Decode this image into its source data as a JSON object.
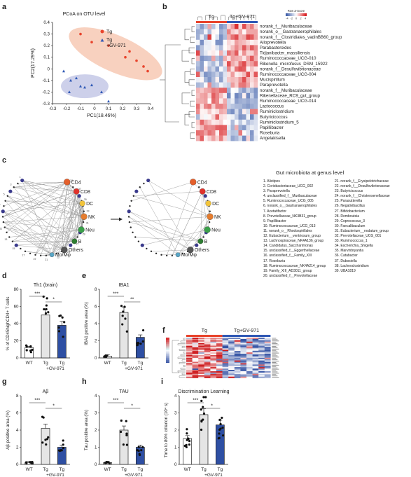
{
  "panels": {
    "a": {
      "letter": "a",
      "title": "PCoA on OTU level",
      "xlabel": "PC1(18.46%)",
      "ylabel": "PC2(17.29%)",
      "xticks": [
        "-0.3",
        "-0.2",
        "-0.1",
        "0",
        "0.1",
        "0.2",
        "0.3",
        "0.4"
      ],
      "yticks": [
        "0.4",
        "0.3",
        "0.2",
        "0.1",
        "0",
        "-0.1",
        "-0.2",
        "-0.3"
      ],
      "legend": [
        "Tg",
        "Tg\n+GV-971"
      ],
      "legend_l1": "Tg",
      "legend_l2a": "Tg",
      "legend_l2b": "+GV-971"
    },
    "b": {
      "letter": "b",
      "group1": "Tg",
      "group2": "Tg+GV-971",
      "scale_title": "Row Z-Score",
      "scale_ticks": [
        "-4",
        "-2",
        "0",
        "2",
        "4"
      ],
      "rows": [
        "norank_f__Muribaculaceae",
        "norank_o__Gastranaerophilales",
        "norank_f__Clostridiales_vadinBB60_group",
        "Alloprevotella",
        "Parabacteroides",
        "Tidjanibacter_massiliensis",
        "Ruminococcaceae_UCG-010",
        "Rikenella_microfusus_DSM_15922",
        "norank_f__Desulfovibrionaceae",
        "Ruminococcaceae_UCG-004",
        "Mucispirillum",
        "Paraprevotella",
        "norank_f__Muribaculaceae",
        "Rikenellaceae_RC9_gut_group",
        "Ruminococcaceae_UCG-014",
        "Lactococcus",
        "Ruminiclostridium",
        "Butyricicoccus",
        "Ruminiclostridium_5",
        "Papillibacter",
        "Roseburia",
        "Angelakisella"
      ]
    },
    "c": {
      "letter": "c",
      "nodes": [
        "CD4",
        "CD8",
        "DC",
        "NK",
        "Neu",
        "B",
        "Others",
        "Mo/Mφ"
      ],
      "title": "Gut microbiota at genus level",
      "genera_col1": [
        "1. Alistipes",
        "2. Coriobacteriaceae_UCG_002",
        "3. Paraprevotella",
        "4. unclassified_f__Muribaculaceae",
        "5. Ruminococcaceae_UCG_005",
        "6. norank_o__Gastranaerophilales",
        "7. Acetatifactor",
        "8. Prevotellaceae_NK3B31_group",
        "9. Papillibacter",
        "10. Ruminococcaceae_UCG_013",
        "11. norank_o__Rhodospirillales",
        "12. Eubacterium__ventriosum_group",
        "13. Lachnospiraceae_NK4A136_group",
        "14. Candidatus_Saccharimonas",
        "15. unclassified_f__Eggerthellaceae",
        "16. unclassified_f__Family_XIII",
        "17. Roseburia",
        "18. Ruminococcaceae_NK4A214_group",
        "19. Family_XIII_AD3011_group",
        "20. unclassified_f__Prevotellaceae"
      ],
      "genera_col2": [
        "21. norank_f__Erysipelotrichaceae",
        "22. norank_f__Desulfovibrionaceae",
        "23. Butyricicoccus",
        "24. norank_f__Christensenellaceae",
        "25. Parasutterella",
        "26. Negativibacillus",
        "27. Bifidobacterium",
        "28. Romboutsia",
        "29. Coprococcus_3",
        "30. Faecalibaculum",
        "31. Eubacterium__nodatum_group",
        "32. Prevotellaceae_UCG_001",
        "33. Ruminococcus_1",
        "34. Escherichia_Shigella",
        "35. Marvinbryantia",
        "36. Catabacter",
        "37. Dubosiella",
        "38. Lachnoclostridium",
        "39. UBA1819"
      ]
    },
    "d": {
      "letter": "d",
      "title": "Th1 (brain)",
      "ylabel": "% of CD45ʰᴵᵍCD4⁺ T cells",
      "ylabel_plain": "% of CD45highCD4+ T cells",
      "yticks": [
        "0",
        "20",
        "40",
        "60",
        "80"
      ],
      "sig": [
        "***",
        "*"
      ]
    },
    "e": {
      "letter": "e",
      "title": "IBA1",
      "ylabel": "IBA1 positive area (%)",
      "yticks": [
        "0",
        "2",
        "4",
        "6",
        "8"
      ],
      "sig": [
        "***",
        "**"
      ]
    },
    "f": {
      "letter": "f",
      "group1": "Tg",
      "group2": "Tg+GV-971"
    },
    "g": {
      "letter": "g",
      "title": "Aβ",
      "ylabel": "Aβ positive area (%)",
      "yticks": [
        "0",
        "2",
        "4",
        "6",
        "8"
      ],
      "sig": [
        "***",
        "*"
      ]
    },
    "h": {
      "letter": "h",
      "title": "TAU",
      "ylabel": "Tau positive area (%)",
      "yticks": [
        "0",
        "1",
        "2",
        "3",
        "4"
      ],
      "sig": [
        "***",
        "*"
      ]
    },
    "i": {
      "letter": "i",
      "title": "Discrimination Learning",
      "ylabel": "Time to 80% criterion (10⁴ s)",
      "yticks": [
        "0",
        "1",
        "2",
        "3",
        "4"
      ],
      "sig": [
        "***",
        "*"
      ]
    }
  },
  "groups": {
    "wt": "WT",
    "tg": "Tg",
    "tg_gv_a": "Tg",
    "tg_gv_b": "+GV-971"
  },
  "colors": {
    "tg": "#e8442c",
    "gv": "#2f58b5",
    "wt_bar": "#ffffff",
    "tg_bar": "#e5e5e5",
    "gv_bar": "#2e4fa3",
    "ellipse_tg": "#f7c9b4",
    "ellipse_gv": "#c8cbe8",
    "hm_high": "#d7191c",
    "hm_low": "#3b5ba7"
  },
  "chart_data": [
    {
      "panel": "d",
      "type": "bar",
      "title": "Th1 (brain)",
      "categories": [
        "WT",
        "Tg",
        "Tg+GV-971"
      ],
      "values": [
        12,
        50,
        38
      ],
      "ylim": [
        0,
        80
      ],
      "ylabel": "% of CD45highCD4+ T cells"
    },
    {
      "panel": "e",
      "type": "bar",
      "title": "IBA1",
      "categories": [
        "WT",
        "Tg",
        "Tg+GV-971"
      ],
      "values": [
        0.2,
        5.3,
        2.4
      ],
      "ylim": [
        0,
        8
      ],
      "ylabel": "IBA1 positive area (%)"
    },
    {
      "panel": "g",
      "type": "bar",
      "title": "Aβ",
      "categories": [
        "WT",
        "Tg",
        "Tg+GV-971"
      ],
      "values": [
        0.2,
        4.2,
        2.0
      ],
      "ylim": [
        0,
        8
      ],
      "ylabel": "Aβ positive area (%)"
    },
    {
      "panel": "h",
      "type": "bar",
      "title": "TAU",
      "categories": [
        "WT",
        "Tg",
        "Tg+GV-971"
      ],
      "values": [
        0.1,
        2.0,
        1.0
      ],
      "ylim": [
        0,
        4
      ],
      "ylabel": "Tau positive area (%)"
    },
    {
      "panel": "i",
      "type": "bar",
      "title": "Discrimination Learning",
      "categories": [
        "WT",
        "Tg",
        "Tg+GV-971"
      ],
      "values": [
        1.5,
        2.9,
        2.3
      ],
      "ylim": [
        0,
        4
      ],
      "ylabel": "Time to 80% criterion (10⁴ s)"
    },
    {
      "panel": "a",
      "type": "scatter",
      "title": "PCoA on OTU level",
      "series": [
        {
          "name": "Tg",
          "x": [
            -0.1,
            -0.02,
            0.1,
            0.22,
            0.3,
            0.35,
            0.25,
            0.38
          ],
          "y": [
            0.3,
            0.23,
            0.2,
            0.1,
            0.07,
            0.02,
            0.15,
            -0.02
          ]
        },
        {
          "name": "Tg+GV-971",
          "x": [
            -0.22,
            -0.17,
            -0.13,
            -0.1,
            -0.07,
            -0.02,
            0.05,
            0.1,
            -0.18
          ],
          "y": [
            -0.02,
            -0.1,
            -0.08,
            -0.15,
            -0.16,
            -0.14,
            -0.2,
            -0.28,
            -0.2
          ]
        }
      ],
      "xlim": [
        -0.3,
        0.4
      ],
      "ylim": [
        -0.3,
        0.4
      ]
    }
  ]
}
